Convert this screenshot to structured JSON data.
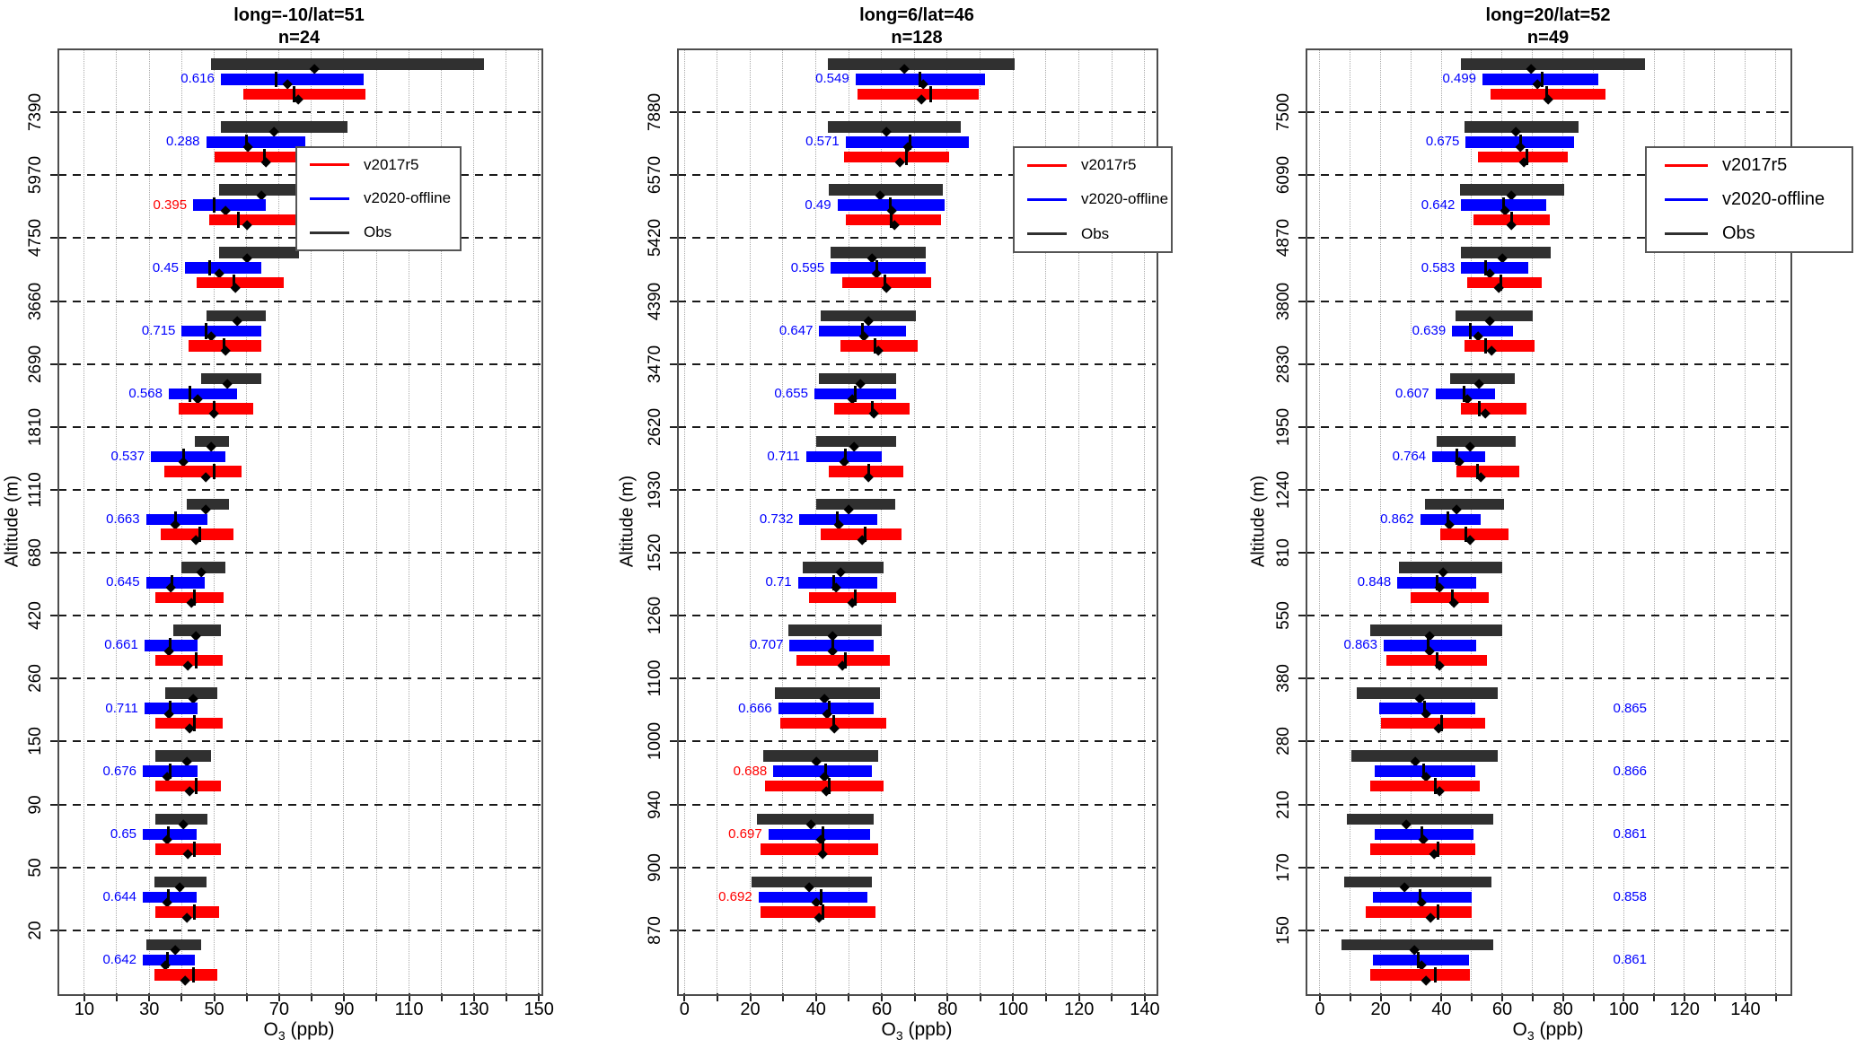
{
  "axes": {
    "x_label_prefix": "O",
    "x_label_sub": "3",
    "x_label_suffix": " (ppb)",
    "y_label": "Altitude (m)"
  },
  "legend": {
    "position": "upper-right",
    "entries": [
      {
        "label": "v2017r5",
        "color": "#ff0000"
      },
      {
        "label": "v2020-offline",
        "color": "#0000ff"
      },
      {
        "label": "Obs",
        "color": "#303030"
      }
    ]
  },
  "colors": {
    "v2017r5": "#ff0000",
    "v2020_offline": "#0000ff",
    "obs": "#303030",
    "r_blue": "#0000ff",
    "r_red": "#ff0000",
    "grid": "#aaaaaa",
    "boundary": "#1a1a1a",
    "box": "#4d4d4d",
    "marker": "#000000"
  },
  "chart_data": [
    {
      "type": "bar",
      "title": "long=-10/lat=51",
      "subtitle": "n=24",
      "xlabel": "O3 (ppb)",
      "ylabel": "Altitude (m)",
      "x_range": [
        2,
        150.5
      ],
      "x_ticks": [
        10,
        30,
        50,
        70,
        90,
        110,
        130,
        150
      ],
      "x_ticks_minor": [
        20,
        40,
        60,
        80,
        100,
        120,
        140
      ],
      "grid": "dotted-vertical-every-10",
      "altitude_boundaries": [
        "7390",
        "5970",
        "4750",
        "3660",
        "2690",
        "1810",
        "1110",
        "680",
        "420",
        "260",
        "150",
        "90",
        "50",
        "20"
      ],
      "series_note": "per group: obs=[min,max,mean]; models=[min,max,median,mean]; r = correlation label",
      "groups": [
        {
          "r": "0.616",
          "rc": "blue",
          "side": "left",
          "obs": [
            49,
            133,
            81
          ],
          "v2020": [
            52,
            96,
            69,
            72.5
          ],
          "v2017": [
            59,
            96.5,
            74.5,
            76
          ]
        },
        {
          "r": "0.288",
          "rc": "blue",
          "side": "left",
          "obs": [
            52,
            91,
            68.5
          ],
          "v2020": [
            47.5,
            78,
            60,
            60.5
          ],
          "v2017": [
            50,
            82.5,
            65.5,
            66
          ]
        },
        {
          "r": "0.395",
          "rc": "red",
          "side": "left",
          "obs": [
            51.5,
            81.5,
            64.5
          ],
          "v2020": [
            43.5,
            66,
            50,
            53.5
          ],
          "v2017": [
            48.5,
            76,
            57.5,
            60
          ]
        },
        {
          "r": "0.45",
          "rc": "blue",
          "side": "left",
          "obs": [
            51.5,
            76,
            60
          ],
          "v2020": [
            41,
            64.5,
            48.5,
            51.5
          ],
          "v2017": [
            44.5,
            71.5,
            56,
            56.5
          ]
        },
        {
          "r": "0.715",
          "rc": "blue",
          "side": "left",
          "obs": [
            47.5,
            66,
            57
          ],
          "v2020": [
            40,
            64.5,
            47.5,
            49
          ],
          "v2017": [
            42,
            64.5,
            53,
            53.5
          ]
        },
        {
          "r": "0.568",
          "rc": "blue",
          "side": "left",
          "obs": [
            46,
            64.5,
            54
          ],
          "v2020": [
            36,
            57,
            42.5,
            45
          ],
          "v2017": [
            39,
            62,
            50,
            50
          ]
        },
        {
          "r": "0.537",
          "rc": "blue",
          "side": "left",
          "obs": [
            44,
            54.5,
            49
          ],
          "v2020": [
            30.5,
            53.5,
            40.5,
            40.5
          ],
          "v2017": [
            34.5,
            58.5,
            50,
            47.5
          ]
        },
        {
          "r": "0.663",
          "rc": "blue",
          "side": "left",
          "obs": [
            41.5,
            54.5,
            47.5
          ],
          "v2020": [
            29,
            48,
            38,
            38
          ],
          "v2017": [
            33.5,
            56,
            45.5,
            44.5
          ]
        },
        {
          "r": "0.645",
          "rc": "blue",
          "side": "left",
          "obs": [
            40,
            53.5,
            46
          ],
          "v2020": [
            29,
            47,
            37,
            36.5
          ],
          "v2017": [
            32,
            53,
            44,
            43
          ]
        },
        {
          "r": "0.661",
          "rc": "blue",
          "side": "left",
          "obs": [
            37.5,
            52,
            44.5
          ],
          "v2020": [
            28.5,
            45,
            36.5,
            36
          ],
          "v2017": [
            32,
            52.5,
            44.5,
            42
          ]
        },
        {
          "r": "0.711",
          "rc": "blue",
          "side": "left",
          "obs": [
            35,
            51,
            43.5
          ],
          "v2020": [
            28.5,
            45,
            36.5,
            36
          ],
          "v2017": [
            32,
            52.5,
            44,
            42.5
          ]
        },
        {
          "r": "0.676",
          "rc": "blue",
          "side": "left",
          "obs": [
            32,
            49,
            41.5
          ],
          "v2020": [
            28,
            45,
            36.5,
            35.5
          ],
          "v2017": [
            32,
            52,
            44.5,
            42.5
          ]
        },
        {
          "r": "0.65",
          "rc": "blue",
          "side": "left",
          "obs": [
            32,
            48,
            40.5
          ],
          "v2020": [
            28,
            44.5,
            36,
            35.5
          ],
          "v2017": [
            32,
            52,
            44,
            42
          ]
        },
        {
          "r": "0.644",
          "rc": "blue",
          "side": "left",
          "obs": [
            31.5,
            47.5,
            39.5
          ],
          "v2020": [
            28,
            44.5,
            36,
            35.5
          ],
          "v2017": [
            32,
            51.5,
            44,
            41.5
          ]
        },
        {
          "r": "0.642",
          "rc": "blue",
          "side": "left",
          "obs": [
            29,
            46,
            38
          ],
          "v2020": [
            28,
            44,
            35.5,
            35
          ],
          "v2017": [
            31.5,
            51,
            43.5,
            41
          ]
        }
      ]
    },
    {
      "type": "bar",
      "title": "long=6/lat=46",
      "subtitle": "n=128",
      "xlabel": "O3 (ppb)",
      "ylabel": "Altitude (m)",
      "x_range": [
        -2,
        143.3
      ],
      "x_ticks": [
        0,
        20,
        40,
        60,
        80,
        100,
        120,
        140
      ],
      "x_ticks_minor": [
        10,
        30,
        50,
        70,
        90,
        110,
        130
      ],
      "grid": "dotted-vertical-every-10",
      "altitude_boundaries": [
        "7880",
        "6570",
        "5420",
        "4390",
        "3470",
        "2620",
        "1930",
        "1520",
        "1260",
        "1100",
        "1000",
        "940",
        "900",
        "870"
      ],
      "groups": [
        {
          "r": "0.549",
          "rc": "blue",
          "side": "left",
          "obs": [
            43.5,
            100.5,
            67
          ],
          "v2020": [
            52,
            91.5,
            71.5,
            72.5
          ],
          "v2017": [
            52.5,
            89.5,
            75,
            72
          ]
        },
        {
          "r": "0.571",
          "rc": "blue",
          "side": "left",
          "obs": [
            43.5,
            84,
            61.5
          ],
          "v2020": [
            49,
            86.5,
            68.5,
            68
          ],
          "v2017": [
            48.5,
            80.5,
            67.5,
            65.5
          ]
        },
        {
          "r": "0.49",
          "rc": "blue",
          "side": "left",
          "obs": [
            44,
            78.5,
            59.5
          ],
          "v2020": [
            46.5,
            79,
            62.5,
            63
          ],
          "v2017": [
            49,
            78,
            63,
            64
          ]
        },
        {
          "r": "0.595",
          "rc": "blue",
          "side": "left",
          "obs": [
            44.5,
            73.5,
            57
          ],
          "v2020": [
            44.5,
            73.5,
            58.5,
            58.5
          ],
          "v2017": [
            48,
            75,
            61,
            61.5
          ]
        },
        {
          "r": "0.647",
          "rc": "blue",
          "side": "left",
          "obs": [
            41.5,
            70.5,
            56
          ],
          "v2020": [
            41,
            67.5,
            54,
            54.5
          ],
          "v2017": [
            47.5,
            71,
            58,
            59
          ]
        },
        {
          "r": "0.655",
          "rc": "blue",
          "side": "left",
          "obs": [
            41,
            64.5,
            53.5
          ],
          "v2020": [
            39.5,
            64.5,
            52,
            51
          ],
          "v2017": [
            45.5,
            68.5,
            57,
            57.5
          ]
        },
        {
          "r": "0.711",
          "rc": "blue",
          "side": "left",
          "obs": [
            40,
            64.5,
            51.5
          ],
          "v2020": [
            37,
            60,
            49,
            48.5
          ],
          "v2017": [
            44,
            66.5,
            56,
            56
          ]
        },
        {
          "r": "0.732",
          "rc": "blue",
          "side": "left",
          "obs": [
            40,
            64,
            50
          ],
          "v2020": [
            35,
            58.5,
            46.5,
            47
          ],
          "v2017": [
            41.5,
            66,
            55,
            54
          ]
        },
        {
          "r": "0.71",
          "rc": "blue",
          "side": "left",
          "obs": [
            36,
            60.5,
            47.5
          ],
          "v2020": [
            34.5,
            58.5,
            45.5,
            46
          ],
          "v2017": [
            38,
            64.5,
            52,
            51
          ]
        },
        {
          "r": "0.707",
          "rc": "blue",
          "side": "left",
          "obs": [
            31.5,
            60,
            45
          ],
          "v2020": [
            32,
            57.5,
            45,
            45
          ],
          "v2017": [
            34,
            62.5,
            49,
            48
          ]
        },
        {
          "r": "0.666",
          "rc": "blue",
          "side": "left",
          "obs": [
            27.5,
            59.5,
            42.5
          ],
          "v2020": [
            28.5,
            57.5,
            44,
            43.5
          ],
          "v2017": [
            29,
            61.5,
            45.5,
            45.5
          ]
        },
        {
          "r": "0.688",
          "rc": "red",
          "side": "left",
          "obs": [
            24,
            59,
            40
          ],
          "v2020": [
            27,
            57,
            43,
            42.5
          ],
          "v2017": [
            24.5,
            60.5,
            44,
            43
          ]
        },
        {
          "r": "0.697",
          "rc": "red",
          "side": "left",
          "obs": [
            22,
            57.5,
            38.5
          ],
          "v2020": [
            25.5,
            56.5,
            42,
            41.5
          ],
          "v2017": [
            23,
            59,
            42,
            42
          ]
        },
        {
          "r": "0.692",
          "rc": "red",
          "side": "left",
          "obs": [
            20.5,
            57,
            38
          ],
          "v2020": [
            22.5,
            55.5,
            41.5,
            40
          ],
          "v2017": [
            23,
            58,
            42,
            41
          ]
        }
      ]
    },
    {
      "type": "bar",
      "title": "long=20/lat=52",
      "subtitle": "n=49",
      "xlabel": "O3 (ppb)",
      "ylabel": "Altitude (m)",
      "x_range": [
        -4.4,
        154.5
      ],
      "x_ticks": [
        0,
        20,
        40,
        60,
        80,
        100,
        120,
        140
      ],
      "x_ticks_minor": [
        10,
        30,
        50,
        70,
        90,
        110,
        130,
        150
      ],
      "grid": "dotted-vertical-every-10",
      "altitude_boundaries": [
        "7500",
        "6090",
        "4870",
        "3800",
        "2830",
        "1950",
        "1240",
        "810",
        "550",
        "380",
        "280",
        "210",
        "170",
        "150"
      ],
      "r_right_label_x_ppb": 102,
      "groups": [
        {
          "r": "0.499",
          "rc": "blue",
          "side": "left",
          "obs": [
            46.5,
            107,
            69.5
          ],
          "v2020": [
            53.5,
            91.5,
            73,
            71.5
          ],
          "v2017": [
            56,
            94,
            74.5,
            75
          ]
        },
        {
          "r": "0.675",
          "rc": "blue",
          "side": "left",
          "obs": [
            47.5,
            85,
            64.5
          ],
          "v2020": [
            48,
            83.5,
            66,
            66
          ],
          "v2017": [
            52,
            81.5,
            68,
            67
          ]
        },
        {
          "r": "0.642",
          "rc": "blue",
          "side": "left",
          "obs": [
            46,
            80.5,
            63
          ],
          "v2020": [
            46.5,
            74.5,
            60.5,
            61
          ],
          "v2017": [
            50.5,
            75.5,
            63,
            63
          ]
        },
        {
          "r": "0.583",
          "rc": "blue",
          "side": "left",
          "obs": [
            46.5,
            76,
            60
          ],
          "v2020": [
            46.5,
            68.5,
            54.5,
            56
          ],
          "v2017": [
            48.5,
            73,
            59.5,
            59
          ]
        },
        {
          "r": "0.639",
          "rc": "blue",
          "side": "left",
          "obs": [
            44.5,
            70,
            56
          ],
          "v2020": [
            43.5,
            63.5,
            49.5,
            52
          ],
          "v2017": [
            47.5,
            70.5,
            54.5,
            56.5
          ]
        },
        {
          "r": "0.607",
          "rc": "blue",
          "side": "left",
          "obs": [
            43,
            64,
            52.5
          ],
          "v2020": [
            38,
            57.5,
            47.5,
            48.5
          ],
          "v2017": [
            46.5,
            68,
            52.5,
            54.5
          ]
        },
        {
          "r": "0.764",
          "rc": "blue",
          "side": "left",
          "obs": [
            38.5,
            64.5,
            49.5
          ],
          "v2020": [
            37,
            54.5,
            45,
            46
          ],
          "v2017": [
            45,
            65.5,
            52,
            53
          ]
        },
        {
          "r": "0.862",
          "rc": "blue",
          "side": "left",
          "obs": [
            34.5,
            60.5,
            45
          ],
          "v2020": [
            33,
            53,
            42,
            42.5
          ],
          "v2017": [
            39.5,
            62,
            48,
            49.5
          ]
        },
        {
          "r": "0.848",
          "rc": "blue",
          "side": "left",
          "obs": [
            26,
            60,
            40.5
          ],
          "v2020": [
            25.5,
            51.5,
            38.5,
            39.5
          ],
          "v2017": [
            30,
            55.5,
            43.5,
            44
          ]
        },
        {
          "r": "0.863",
          "rc": "blue",
          "side": "left",
          "obs": [
            16.5,
            60,
            36
          ],
          "v2020": [
            21,
            51.5,
            35.5,
            36
          ],
          "v2017": [
            22,
            55,
            38.5,
            39.5
          ]
        },
        {
          "r": "0.865",
          "rc": "blue",
          "side": "right",
          "obs": [
            12,
            58.5,
            33
          ],
          "v2020": [
            19.5,
            51,
            34.5,
            35
          ],
          "v2017": [
            20,
            54.5,
            40,
            39
          ]
        },
        {
          "r": "0.866",
          "rc": "blue",
          "side": "right",
          "obs": [
            10.5,
            58.5,
            31.5
          ],
          "v2020": [
            18,
            51,
            34,
            35
          ],
          "v2017": [
            16.5,
            52.5,
            38,
            39.5
          ]
        },
        {
          "r": "0.861",
          "rc": "blue",
          "side": "right",
          "obs": [
            9,
            57,
            28.5
          ],
          "v2020": [
            18,
            50.5,
            33.5,
            34
          ],
          "v2017": [
            16.5,
            51,
            39,
            37.5
          ]
        },
        {
          "r": "0.858",
          "rc": "blue",
          "side": "right",
          "obs": [
            8,
            56.5,
            28
          ],
          "v2020": [
            17.5,
            50,
            33,
            33.5
          ],
          "v2017": [
            15,
            50,
            39,
            36.5
          ]
        },
        {
          "r": "0.861",
          "rc": "blue",
          "side": "right",
          "obs": [
            7,
            57,
            31
          ],
          "v2020": [
            17.5,
            49,
            32.5,
            33.5
          ],
          "v2017": [
            16.5,
            49.5,
            38,
            35
          ]
        }
      ]
    }
  ]
}
